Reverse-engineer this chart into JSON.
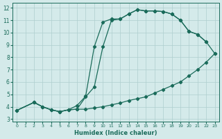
{
  "xlabel": "Humidex (Indice chaleur)",
  "bg_color": "#d4eaea",
  "grid_color": "#aecece",
  "line_color": "#1a6b5a",
  "xlim": [
    -0.5,
    23.5
  ],
  "ylim": [
    2.8,
    12.4
  ],
  "xticks": [
    0,
    1,
    2,
    3,
    4,
    5,
    6,
    7,
    8,
    9,
    10,
    11,
    12,
    13,
    14,
    15,
    16,
    17,
    18,
    19,
    20,
    21,
    22,
    23
  ],
  "yticks": [
    3,
    4,
    5,
    6,
    7,
    8,
    9,
    10,
    11,
    12
  ],
  "line1_x": [
    0,
    2,
    3,
    4,
    5,
    6,
    7,
    8,
    9,
    10,
    11,
    12,
    13,
    14,
    15,
    16,
    17,
    18,
    19,
    20,
    21,
    22,
    23
  ],
  "line1_y": [
    3.7,
    4.35,
    4.0,
    3.75,
    3.6,
    3.75,
    3.8,
    3.8,
    3.9,
    4.0,
    4.15,
    4.3,
    4.5,
    4.65,
    4.8,
    5.1,
    5.4,
    5.7,
    6.0,
    6.5,
    7.0,
    7.6,
    8.3
  ],
  "line2_x": [
    0,
    2,
    3,
    4,
    5,
    6,
    7,
    8,
    9,
    10,
    11,
    12,
    13,
    14,
    15,
    16,
    17,
    18,
    19,
    20,
    21,
    22,
    23
  ],
  "line2_y": [
    3.7,
    4.35,
    4.0,
    3.75,
    3.6,
    3.75,
    3.8,
    4.8,
    5.6,
    8.85,
    11.0,
    11.1,
    11.5,
    11.85,
    11.75,
    11.75,
    11.7,
    11.5,
    11.0,
    10.1,
    9.85,
    9.25,
    8.3
  ],
  "line3_x": [
    0,
    2,
    3,
    4,
    5,
    6,
    7,
    8,
    9,
    10,
    11,
    12,
    13,
    14,
    15,
    16,
    17,
    18,
    19,
    20,
    21,
    22
  ],
  "line3_y": [
    3.7,
    4.35,
    4.0,
    3.75,
    3.6,
    3.75,
    4.1,
    4.85,
    8.85,
    10.85,
    11.1,
    11.1,
    11.5,
    11.85,
    11.75,
    11.75,
    11.7,
    11.5,
    11.0,
    10.1,
    9.85,
    9.25
  ]
}
